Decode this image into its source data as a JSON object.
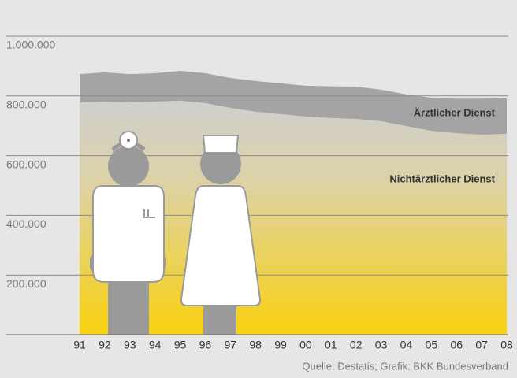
{
  "chart_data": {
    "type": "area",
    "stacked": true,
    "categories": [
      "91",
      "92",
      "93",
      "94",
      "95",
      "96",
      "97",
      "98",
      "99",
      "00",
      "01",
      "02",
      "03",
      "04",
      "05",
      "06",
      "07",
      "08"
    ],
    "series": [
      {
        "name": "Nichtärztlicher Dienst",
        "color": "#f9d20f",
        "values": [
          778000,
          781000,
          778000,
          781000,
          784000,
          776000,
          760000,
          747000,
          739000,
          731000,
          726000,
          723000,
          715000,
          699000,
          683000,
          675000,
          670000,
          673000
        ]
      },
      {
        "name": "Ärztlicher Dienst",
        "color": "#a4a4a4",
        "values": [
          95000,
          98000,
          95000,
          95000,
          100000,
          100000,
          100000,
          103000,
          103000,
          103000,
          106000,
          108000,
          106000,
          106000,
          111000,
          116000,
          121000,
          121000
        ]
      }
    ],
    "ylim": [
      0,
      1000000
    ],
    "yticks": [
      {
        "value": 200000,
        "label": "200.000"
      },
      {
        "value": 400000,
        "label": "400.000"
      },
      {
        "value": 600000,
        "label": "600.000"
      },
      {
        "value": 800000,
        "label": "800.000"
      },
      {
        "value": 1000000,
        "label": "1.000.000"
      }
    ],
    "grid": true,
    "source": "Quelle: Destatis; Grafik: BKK Bundesverband"
  }
}
